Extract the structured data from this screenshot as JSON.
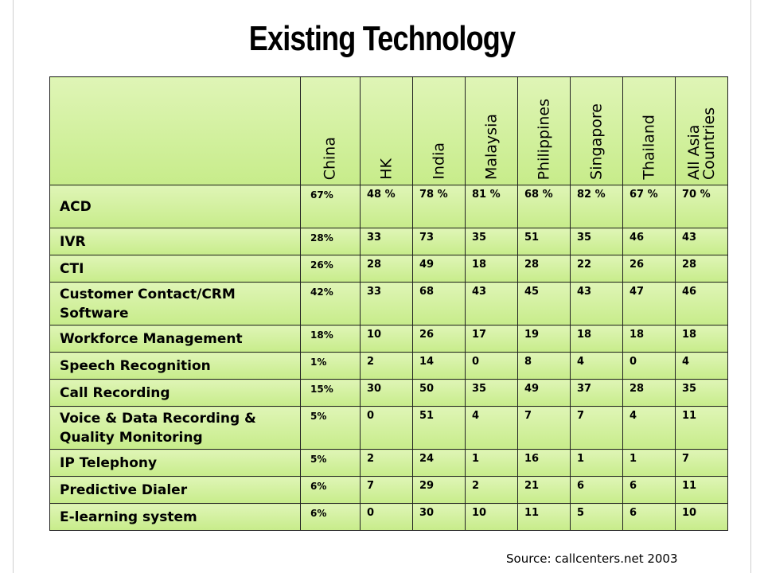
{
  "title": "Existing Technology",
  "table": {
    "columns": [
      "China",
      "HK",
      "India",
      "Malaysia",
      "Philippines",
      "Singapore",
      "Thailand",
      "All Asia Countries"
    ],
    "rows": [
      {
        "label": "ACD",
        "values": [
          "67%",
          "48 %",
          "78 %",
          "81 %",
          "68 %",
          "82 %",
          "67 %",
          "70 %"
        ]
      },
      {
        "label": "IVR",
        "values": [
          "28%",
          "33",
          "73",
          "35",
          "51",
          "35",
          "46",
          "43"
        ]
      },
      {
        "label": "CTI",
        "values": [
          "26%",
          "28",
          "49",
          "18",
          "28",
          "22",
          "26",
          "28"
        ]
      },
      {
        "label": "Customer Contact/CRM Software",
        "values": [
          "42%",
          "33",
          "68",
          "43",
          "45",
          "43",
          "47",
          "46"
        ]
      },
      {
        "label": "Workforce Management",
        "values": [
          "18%",
          "10",
          "26",
          "17",
          "19",
          "18",
          "18",
          "18"
        ]
      },
      {
        "label": "Speech Recognition",
        "values": [
          "1%",
          "2",
          "14",
          "0",
          "8",
          "4",
          "0",
          "4"
        ]
      },
      {
        "label": "Call Recording",
        "values": [
          "15%",
          "30",
          "50",
          "35",
          "49",
          "37",
          "28",
          "35"
        ]
      },
      {
        "label": "Voice & Data Recording & Quality Monitoring",
        "values": [
          "5%",
          "0",
          "51",
          "4",
          "7",
          "7",
          "4",
          "11"
        ]
      },
      {
        "label": "IP Telephony",
        "values": [
          "5%",
          "2",
          "24",
          "1",
          "16",
          "1",
          "1",
          "7"
        ]
      },
      {
        "label": "Predictive Dialer",
        "values": [
          "6%",
          "7",
          "29",
          "2",
          "21",
          "6",
          "6",
          "11"
        ]
      },
      {
        "label": "E-learning system",
        "values": [
          "6%",
          "0",
          "30",
          "10",
          "11",
          "5",
          "6",
          "10"
        ]
      }
    ]
  },
  "source": "Source: callcenters.net 2003"
}
